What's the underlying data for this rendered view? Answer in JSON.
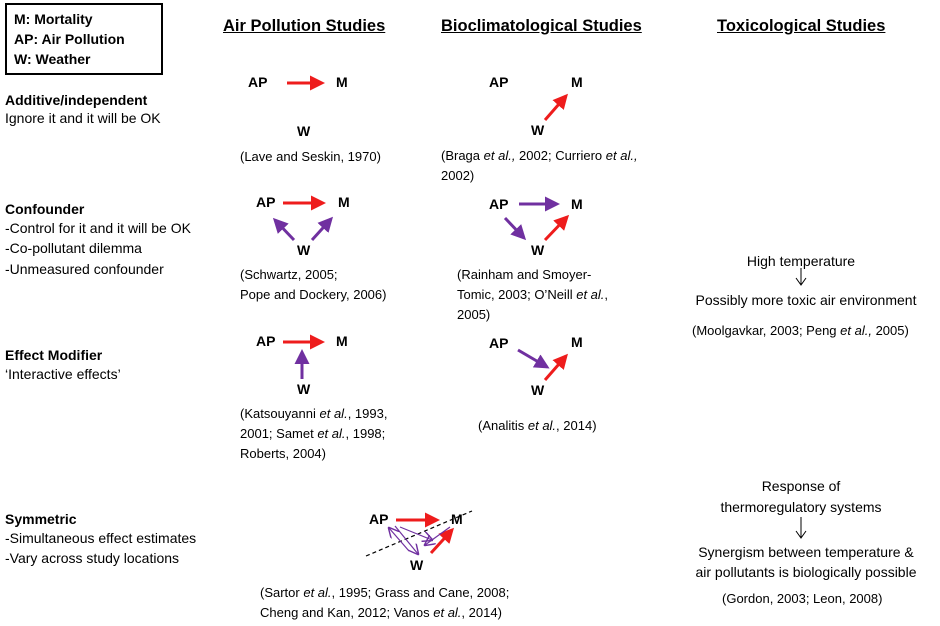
{
  "legend": {
    "items": [
      "M: Mortality",
      "AP: Air Pollution",
      "W: Weather"
    ]
  },
  "columns": {
    "air": "Air Pollution Studies",
    "bio": "Bioclimatological Studies",
    "tox": "Toxicological Studies"
  },
  "nodes": {
    "ap": "AP",
    "m": "M",
    "w": "W"
  },
  "colors": {
    "red": "#ee1c1c",
    "purple": "#7030a0"
  },
  "rows": {
    "additive": {
      "title": "Additive/independent",
      "lines": [
        "Ignore it and it will be OK"
      ]
    },
    "confounder": {
      "title": "Confounder",
      "lines": [
        "-Control for it and it will be OK",
        "-Co-pollutant dilemma",
        "-Unmeasured confounder"
      ]
    },
    "modifier": {
      "title": "Effect Modifier",
      "lines": [
        "‘Interactive effects’"
      ]
    },
    "symmetric": {
      "title": "Symmetric",
      "lines": [
        "-Simultaneous effect estimates",
        "-Vary across study locations"
      ]
    }
  },
  "citations": {
    "additive_air": [
      "(Lave and Seskin, 1970)"
    ],
    "additive_bio": [
      [
        "(Braga ",
        "et al.,",
        " 2002; Curriero ",
        "et al.,",
        ""
      ],
      [
        "2002)"
      ]
    ],
    "confounder_air": [
      "(Schwartz, 2005;",
      "Pope and Dockery, 2006)"
    ],
    "confounder_bio": [
      [
        "(Rainham and Smoyer-"
      ],
      [
        "Tomic, 2003; O’Neill ",
        "et al.",
        ","
      ],
      [
        "2005)"
      ]
    ],
    "modifier_air": [
      [
        "(Katsouyanni ",
        "et al.",
        ", 1993,"
      ],
      [
        "2001; Samet  ",
        "et al.",
        ", 1998;"
      ],
      [
        "Roberts, 2004)"
      ]
    ],
    "modifier_bio": [
      [
        "(Analitis ",
        "et al.",
        ", 2014)"
      ]
    ],
    "symmetric": [
      [
        "(Sartor ",
        "et al.",
        ", 1995; Grass and Cane, 2008;"
      ],
      [
        "Cheng and Kan, 2012; Vanos ",
        "et al.",
        ", 2014)"
      ]
    ],
    "confounder_tox": [
      [
        "(Moolgavkar, 2003; Peng ",
        "et al.,",
        " 2005)"
      ]
    ],
    "symmetric_tox": [
      [
        "(Gordon, 2003; Leon, 2008)"
      ]
    ]
  },
  "toxicology": {
    "confounder_top": "High temperature",
    "confounder_bottom": "Possibly more toxic air environment",
    "symmetric_top": [
      "Response of",
      "thermoregulatory systems"
    ],
    "symmetric_bottom": [
      "Synergism between temperature &",
      "air pollutants is biologically possible"
    ]
  }
}
